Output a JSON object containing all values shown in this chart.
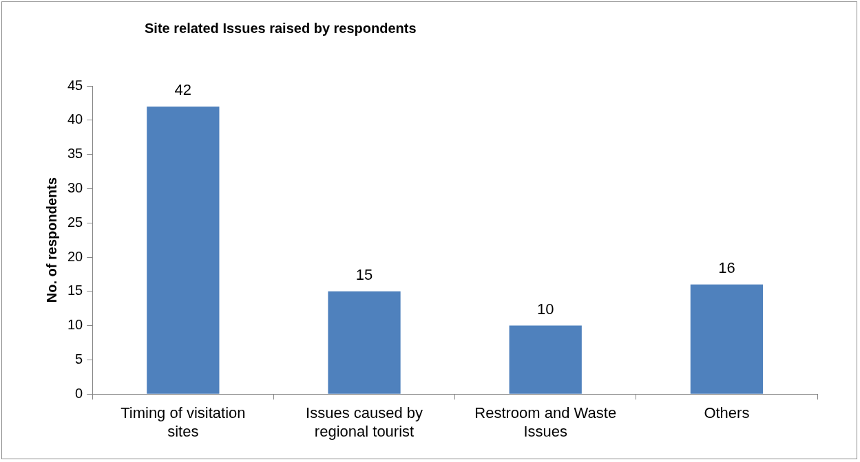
{
  "chart_data": {
    "type": "bar",
    "title": "Site related Issues raised by respondents",
    "ylabel": "No. of respondents",
    "categories": [
      "Timing of visitation sites",
      "Issues caused by regional tourist",
      "Restroom and Waste Issues",
      "Others"
    ],
    "values": [
      42,
      15,
      10,
      16
    ],
    "color": "#4f81bd",
    "ylim": [
      0,
      45
    ],
    "yticks": [
      0,
      5,
      10,
      15,
      20,
      25,
      30,
      35,
      40,
      45
    ],
    "grid": false,
    "legend": false,
    "data_labels": true
  }
}
